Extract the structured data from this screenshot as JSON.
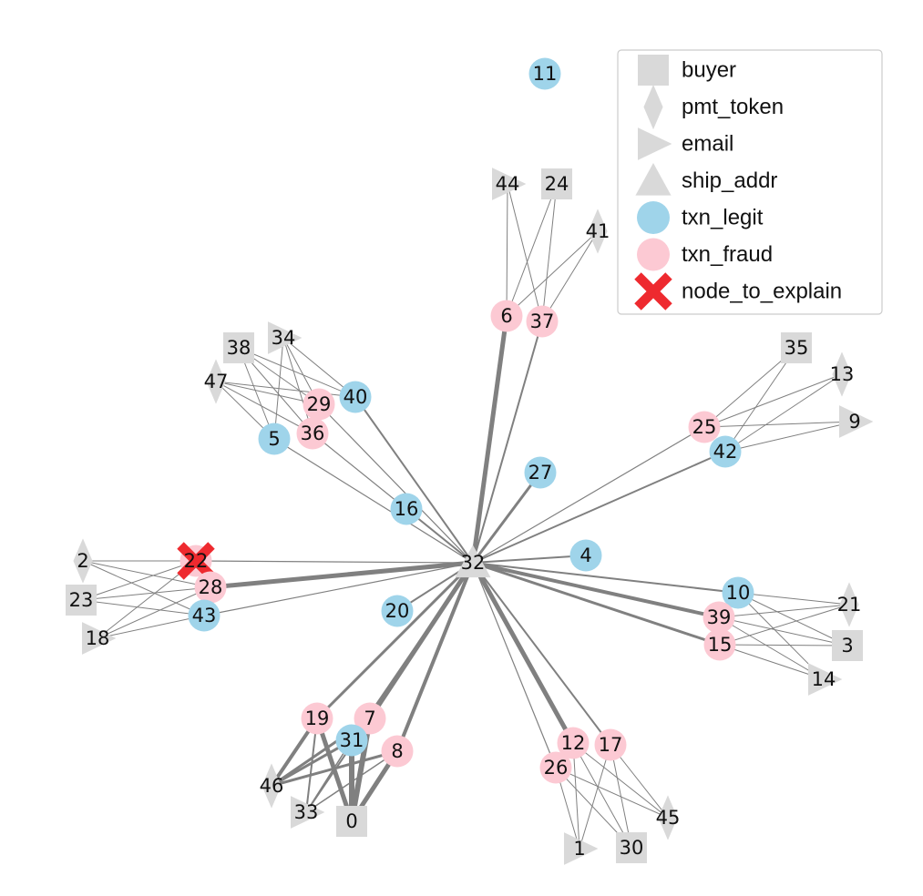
{
  "colors": {
    "legit": "#9fd4ea",
    "fraud": "#fcc9d3",
    "entity": "#d9d9d9",
    "edge": "#808080",
    "explain": "#ee2a2f"
  },
  "legend": [
    {
      "shape": "square",
      "label": "buyer"
    },
    {
      "shape": "diamond",
      "label": "pmt_token"
    },
    {
      "shape": "triangle-right",
      "label": "email"
    },
    {
      "shape": "triangle-up",
      "label": "ship_addr"
    },
    {
      "shape": "circle-legit",
      "label": "txn_legit"
    },
    {
      "shape": "circle-fraud",
      "label": "txn_fraud"
    },
    {
      "shape": "cross",
      "label": "node_to_explain"
    }
  ],
  "nodes": [
    {
      "id": "0",
      "type": "buyer"
    },
    {
      "id": "1",
      "type": "email"
    },
    {
      "id": "2",
      "type": "pmt_token"
    },
    {
      "id": "3",
      "type": "buyer"
    },
    {
      "id": "4",
      "type": "txn_legit"
    },
    {
      "id": "5",
      "type": "txn_legit"
    },
    {
      "id": "6",
      "type": "txn_fraud"
    },
    {
      "id": "7",
      "type": "txn_fraud"
    },
    {
      "id": "8",
      "type": "txn_fraud"
    },
    {
      "id": "9",
      "type": "email"
    },
    {
      "id": "10",
      "type": "txn_legit"
    },
    {
      "id": "11",
      "type": "txn_legit"
    },
    {
      "id": "12",
      "type": "txn_fraud"
    },
    {
      "id": "13",
      "type": "pmt_token"
    },
    {
      "id": "14",
      "type": "email"
    },
    {
      "id": "15",
      "type": "txn_fraud"
    },
    {
      "id": "16",
      "type": "txn_legit"
    },
    {
      "id": "17",
      "type": "txn_fraud"
    },
    {
      "id": "18",
      "type": "email"
    },
    {
      "id": "19",
      "type": "txn_fraud"
    },
    {
      "id": "20",
      "type": "txn_legit"
    },
    {
      "id": "21",
      "type": "pmt_token"
    },
    {
      "id": "22",
      "type": "txn_fraud",
      "explain": true
    },
    {
      "id": "23",
      "type": "buyer"
    },
    {
      "id": "24",
      "type": "buyer"
    },
    {
      "id": "25",
      "type": "txn_fraud"
    },
    {
      "id": "26",
      "type": "txn_fraud"
    },
    {
      "id": "27",
      "type": "txn_legit"
    },
    {
      "id": "28",
      "type": "txn_fraud"
    },
    {
      "id": "29",
      "type": "txn_fraud"
    },
    {
      "id": "30",
      "type": "buyer"
    },
    {
      "id": "31",
      "type": "txn_legit"
    },
    {
      "id": "32",
      "type": "ship_addr"
    },
    {
      "id": "33",
      "type": "email"
    },
    {
      "id": "34",
      "type": "email"
    },
    {
      "id": "35",
      "type": "buyer"
    },
    {
      "id": "36",
      "type": "txn_fraud"
    },
    {
      "id": "37",
      "type": "txn_fraud"
    },
    {
      "id": "38",
      "type": "buyer"
    },
    {
      "id": "39",
      "type": "txn_fraud"
    },
    {
      "id": "40",
      "type": "txn_legit"
    },
    {
      "id": "41",
      "type": "pmt_token"
    },
    {
      "id": "42",
      "type": "txn_legit"
    },
    {
      "id": "43",
      "type": "txn_legit"
    },
    {
      "id": "44",
      "type": "email"
    },
    {
      "id": "45",
      "type": "pmt_token"
    },
    {
      "id": "46",
      "type": "pmt_token"
    },
    {
      "id": "47",
      "type": "pmt_token"
    }
  ],
  "edges": [
    [
      "32",
      "6",
      5
    ],
    [
      "32",
      "37",
      2
    ],
    [
      "32",
      "27",
      3
    ],
    [
      "32",
      "16",
      2
    ],
    [
      "32",
      "40",
      2
    ],
    [
      "32",
      "36",
      1.2
    ],
    [
      "32",
      "5",
      1.2
    ],
    [
      "32",
      "29",
      1.2
    ],
    [
      "32",
      "42",
      2
    ],
    [
      "32",
      "25",
      1.2
    ],
    [
      "32",
      "4",
      2
    ],
    [
      "32",
      "10",
      2
    ],
    [
      "32",
      "39",
      4
    ],
    [
      "32",
      "15",
      3
    ],
    [
      "32",
      "22",
      1.2
    ],
    [
      "32",
      "28",
      5
    ],
    [
      "32",
      "43",
      1.2
    ],
    [
      "32",
      "20",
      2
    ],
    [
      "32",
      "19",
      3
    ],
    [
      "32",
      "7",
      5
    ],
    [
      "32",
      "8",
      4
    ],
    [
      "32",
      "31",
      2
    ],
    [
      "32",
      "12",
      5
    ],
    [
      "32",
      "17",
      2
    ],
    [
      "32",
      "26",
      1.2
    ],
    [
      "6",
      "44",
      1
    ],
    [
      "6",
      "24",
      1
    ],
    [
      "6",
      "41",
      1
    ],
    [
      "37",
      "44",
      1
    ],
    [
      "37",
      "24",
      1
    ],
    [
      "37",
      "41",
      1
    ],
    [
      "38",
      "40",
      1
    ],
    [
      "38",
      "29",
      1
    ],
    [
      "38",
      "36",
      1
    ],
    [
      "38",
      "5",
      1
    ],
    [
      "34",
      "40",
      1
    ],
    [
      "34",
      "29",
      1
    ],
    [
      "34",
      "36",
      1
    ],
    [
      "34",
      "5",
      1
    ],
    [
      "47",
      "40",
      1
    ],
    [
      "47",
      "29",
      1
    ],
    [
      "47",
      "36",
      1
    ],
    [
      "47",
      "5",
      1
    ],
    [
      "35",
      "25",
      1
    ],
    [
      "35",
      "42",
      1
    ],
    [
      "13",
      "25",
      1
    ],
    [
      "13",
      "42",
      1
    ],
    [
      "9",
      "25",
      1
    ],
    [
      "9",
      "42",
      1
    ],
    [
      "2",
      "22",
      1
    ],
    [
      "2",
      "28",
      1
    ],
    [
      "2",
      "43",
      1
    ],
    [
      "23",
      "22",
      1
    ],
    [
      "23",
      "28",
      1
    ],
    [
      "23",
      "43",
      1
    ],
    [
      "18",
      "22",
      1
    ],
    [
      "18",
      "28",
      1
    ],
    [
      "18",
      "43",
      1
    ],
    [
      "21",
      "10",
      1
    ],
    [
      "21",
      "39",
      1
    ],
    [
      "21",
      "15",
      1
    ],
    [
      "3",
      "10",
      1
    ],
    [
      "3",
      "39",
      1
    ],
    [
      "3",
      "15",
      1
    ],
    [
      "14",
      "10",
      1
    ],
    [
      "14",
      "39",
      1
    ],
    [
      "14",
      "15",
      1
    ],
    [
      "46",
      "19",
      4
    ],
    [
      "46",
      "7",
      3
    ],
    [
      "46",
      "31",
      3
    ],
    [
      "46",
      "8",
      3
    ],
    [
      "33",
      "19",
      2
    ],
    [
      "33",
      "7",
      2
    ],
    [
      "33",
      "31",
      1.5
    ],
    [
      "33",
      "8",
      1.5
    ],
    [
      "0",
      "19",
      5
    ],
    [
      "0",
      "7",
      6
    ],
    [
      "0",
      "31",
      6
    ],
    [
      "0",
      "8",
      5
    ],
    [
      "12",
      "1",
      1
    ],
    [
      "12",
      "30",
      1
    ],
    [
      "12",
      "45",
      1
    ],
    [
      "17",
      "1",
      1
    ],
    [
      "17",
      "30",
      1
    ],
    [
      "17",
      "45",
      1
    ],
    [
      "26",
      "1",
      1
    ],
    [
      "26",
      "30",
      1
    ],
    [
      "26",
      "45",
      1
    ]
  ]
}
